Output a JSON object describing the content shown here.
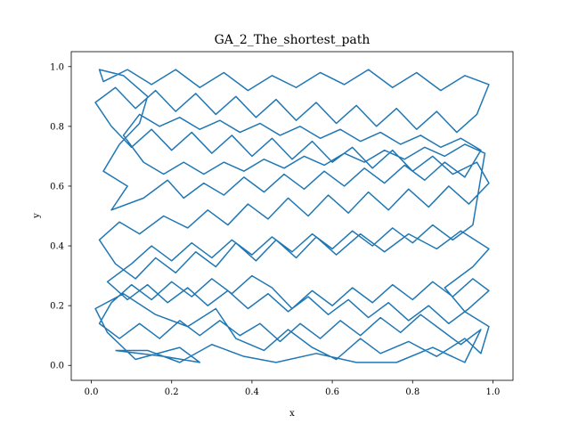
{
  "chart_data": {
    "type": "line",
    "title": "GA_2_The_shortest_path",
    "xlabel": "x",
    "ylabel": "y",
    "xlim": [
      -0.05,
      1.05
    ],
    "ylim": [
      -0.05,
      1.05
    ],
    "xticks": [
      0.0,
      0.2,
      0.4,
      0.6,
      0.8,
      1.0
    ],
    "yticks": [
      0.0,
      0.2,
      0.4,
      0.6,
      0.8,
      1.0
    ],
    "xtick_labels": [
      "0.0",
      "0.2",
      "0.4",
      "0.6",
      "0.8",
      "1.0"
    ],
    "ytick_labels": [
      "0.0",
      "0.2",
      "0.4",
      "0.6",
      "0.8",
      "1.0"
    ],
    "grid": false,
    "legend": "none",
    "series": [
      {
        "color": "#1f77b4",
        "points": [
          [
            0.06,
            0.05
          ],
          [
            0.18,
            0.03
          ],
          [
            0.27,
            0.01
          ],
          [
            0.22,
            0.06
          ],
          [
            0.11,
            0.02
          ],
          [
            0.04,
            0.11
          ],
          [
            0.01,
            0.19
          ],
          [
            0.08,
            0.24
          ],
          [
            0.16,
            0.17
          ],
          [
            0.24,
            0.13
          ],
          [
            0.31,
            0.19
          ],
          [
            0.36,
            0.09
          ],
          [
            0.43,
            0.05
          ],
          [
            0.49,
            0.12
          ],
          [
            0.55,
            0.06
          ],
          [
            0.61,
            0.02
          ],
          [
            0.67,
            0.09
          ],
          [
            0.72,
            0.04
          ],
          [
            0.79,
            0.08
          ],
          [
            0.86,
            0.03
          ],
          [
            0.93,
            0.09
          ],
          [
            0.97,
            0.04
          ],
          [
            0.99,
            0.13
          ],
          [
            0.93,
            0.18
          ],
          [
            0.88,
            0.26
          ],
          [
            0.95,
            0.33
          ],
          [
            0.99,
            0.39
          ],
          [
            0.92,
            0.45
          ],
          [
            0.86,
            0.39
          ],
          [
            0.79,
            0.44
          ],
          [
            0.73,
            0.38
          ],
          [
            0.67,
            0.44
          ],
          [
            0.61,
            0.37
          ],
          [
            0.56,
            0.43
          ],
          [
            0.51,
            0.36
          ],
          [
            0.46,
            0.42
          ],
          [
            0.41,
            0.35
          ],
          [
            0.36,
            0.41
          ],
          [
            0.31,
            0.33
          ],
          [
            0.26,
            0.38
          ],
          [
            0.21,
            0.31
          ],
          [
            0.16,
            0.36
          ],
          [
            0.11,
            0.29
          ],
          [
            0.06,
            0.34
          ],
          [
            0.02,
            0.42
          ],
          [
            0.07,
            0.48
          ],
          [
            0.12,
            0.44
          ],
          [
            0.18,
            0.5
          ],
          [
            0.24,
            0.46
          ],
          [
            0.29,
            0.52
          ],
          [
            0.34,
            0.47
          ],
          [
            0.39,
            0.54
          ],
          [
            0.44,
            0.49
          ],
          [
            0.49,
            0.56
          ],
          [
            0.54,
            0.5
          ],
          [
            0.59,
            0.57
          ],
          [
            0.64,
            0.51
          ],
          [
            0.69,
            0.58
          ],
          [
            0.74,
            0.52
          ],
          [
            0.79,
            0.59
          ],
          [
            0.84,
            0.53
          ],
          [
            0.89,
            0.6
          ],
          [
            0.94,
            0.54
          ],
          [
            0.99,
            0.61
          ],
          [
            0.96,
            0.68
          ],
          [
            0.9,
            0.64
          ],
          [
            0.85,
            0.7
          ],
          [
            0.8,
            0.65
          ],
          [
            0.75,
            0.72
          ],
          [
            0.7,
            0.66
          ],
          [
            0.65,
            0.73
          ],
          [
            0.6,
            0.68
          ],
          [
            0.55,
            0.75
          ],
          [
            0.5,
            0.69
          ],
          [
            0.45,
            0.76
          ],
          [
            0.4,
            0.7
          ],
          [
            0.35,
            0.77
          ],
          [
            0.3,
            0.71
          ],
          [
            0.25,
            0.78
          ],
          [
            0.2,
            0.72
          ],
          [
            0.15,
            0.79
          ],
          [
            0.1,
            0.73
          ],
          [
            0.05,
            0.8
          ],
          [
            0.01,
            0.88
          ],
          [
            0.06,
            0.93
          ],
          [
            0.11,
            0.86
          ],
          [
            0.16,
            0.92
          ],
          [
            0.21,
            0.85
          ],
          [
            0.26,
            0.91
          ],
          [
            0.31,
            0.84
          ],
          [
            0.36,
            0.9
          ],
          [
            0.41,
            0.83
          ],
          [
            0.46,
            0.89
          ],
          [
            0.51,
            0.82
          ],
          [
            0.56,
            0.88
          ],
          [
            0.61,
            0.81
          ],
          [
            0.66,
            0.87
          ],
          [
            0.71,
            0.8
          ],
          [
            0.76,
            0.86
          ],
          [
            0.81,
            0.79
          ],
          [
            0.86,
            0.85
          ],
          [
            0.91,
            0.78
          ],
          [
            0.96,
            0.84
          ],
          [
            0.99,
            0.94
          ],
          [
            0.93,
            0.97
          ],
          [
            0.87,
            0.92
          ],
          [
            0.81,
            0.98
          ],
          [
            0.75,
            0.93
          ],
          [
            0.69,
            0.99
          ],
          [
            0.63,
            0.94
          ],
          [
            0.57,
            0.98
          ],
          [
            0.51,
            0.93
          ],
          [
            0.45,
            0.97
          ],
          [
            0.39,
            0.92
          ],
          [
            0.33,
            0.98
          ],
          [
            0.27,
            0.93
          ],
          [
            0.21,
            0.99
          ],
          [
            0.15,
            0.94
          ],
          [
            0.09,
            0.99
          ],
          [
            0.03,
            0.95
          ],
          [
            0.02,
            0.99
          ],
          [
            0.08,
            0.97
          ],
          [
            0.14,
            0.9
          ],
          [
            0.12,
            0.81
          ],
          [
            0.07,
            0.74
          ],
          [
            0.03,
            0.65
          ],
          [
            0.09,
            0.6
          ],
          [
            0.05,
            0.52
          ],
          [
            0.13,
            0.56
          ],
          [
            0.19,
            0.62
          ],
          [
            0.23,
            0.56
          ],
          [
            0.28,
            0.61
          ],
          [
            0.33,
            0.57
          ],
          [
            0.38,
            0.63
          ],
          [
            0.43,
            0.58
          ],
          [
            0.48,
            0.64
          ],
          [
            0.53,
            0.59
          ],
          [
            0.58,
            0.65
          ],
          [
            0.63,
            0.6
          ],
          [
            0.68,
            0.66
          ],
          [
            0.73,
            0.61
          ],
          [
            0.78,
            0.67
          ],
          [
            0.83,
            0.62
          ],
          [
            0.88,
            0.68
          ],
          [
            0.93,
            0.63
          ],
          [
            0.97,
            0.72
          ],
          [
            0.92,
            0.76
          ],
          [
            0.87,
            0.73
          ],
          [
            0.82,
            0.77
          ],
          [
            0.77,
            0.74
          ],
          [
            0.72,
            0.78
          ],
          [
            0.67,
            0.75
          ],
          [
            0.62,
            0.79
          ],
          [
            0.57,
            0.76
          ],
          [
            0.52,
            0.8
          ],
          [
            0.47,
            0.77
          ],
          [
            0.42,
            0.81
          ],
          [
            0.37,
            0.78
          ],
          [
            0.32,
            0.82
          ],
          [
            0.27,
            0.79
          ],
          [
            0.22,
            0.83
          ],
          [
            0.17,
            0.8
          ],
          [
            0.12,
            0.84
          ],
          [
            0.08,
            0.77
          ],
          [
            0.13,
            0.68
          ],
          [
            0.18,
            0.64
          ],
          [
            0.23,
            0.68
          ],
          [
            0.28,
            0.64
          ],
          [
            0.33,
            0.68
          ],
          [
            0.38,
            0.65
          ],
          [
            0.43,
            0.69
          ],
          [
            0.48,
            0.66
          ],
          [
            0.53,
            0.7
          ],
          [
            0.58,
            0.67
          ],
          [
            0.63,
            0.71
          ],
          [
            0.68,
            0.68
          ],
          [
            0.73,
            0.72
          ],
          [
            0.78,
            0.69
          ],
          [
            0.83,
            0.73
          ],
          [
            0.88,
            0.7
          ],
          [
            0.93,
            0.74
          ],
          [
            0.98,
            0.71
          ],
          [
            0.95,
            0.47
          ],
          [
            0.9,
            0.42
          ],
          [
            0.85,
            0.47
          ],
          [
            0.8,
            0.41
          ],
          [
            0.75,
            0.46
          ],
          [
            0.7,
            0.4
          ],
          [
            0.65,
            0.45
          ],
          [
            0.6,
            0.39
          ],
          [
            0.55,
            0.44
          ],
          [
            0.5,
            0.38
          ],
          [
            0.45,
            0.43
          ],
          [
            0.4,
            0.37
          ],
          [
            0.35,
            0.42
          ],
          [
            0.3,
            0.36
          ],
          [
            0.25,
            0.41
          ],
          [
            0.2,
            0.35
          ],
          [
            0.15,
            0.4
          ],
          [
            0.1,
            0.34
          ],
          [
            0.04,
            0.28
          ],
          [
            0.09,
            0.22
          ],
          [
            0.14,
            0.27
          ],
          [
            0.19,
            0.21
          ],
          [
            0.24,
            0.26
          ],
          [
            0.29,
            0.2
          ],
          [
            0.34,
            0.25
          ],
          [
            0.39,
            0.19
          ],
          [
            0.44,
            0.24
          ],
          [
            0.49,
            0.18
          ],
          [
            0.54,
            0.23
          ],
          [
            0.59,
            0.17
          ],
          [
            0.64,
            0.22
          ],
          [
            0.69,
            0.16
          ],
          [
            0.74,
            0.21
          ],
          [
            0.79,
            0.15
          ],
          [
            0.84,
            0.2
          ],
          [
            0.89,
            0.14
          ],
          [
            0.94,
            0.19
          ],
          [
            0.99,
            0.25
          ],
          [
            0.95,
            0.29
          ],
          [
            0.9,
            0.23
          ],
          [
            0.85,
            0.28
          ],
          [
            0.8,
            0.22
          ],
          [
            0.75,
            0.27
          ],
          [
            0.7,
            0.21
          ],
          [
            0.65,
            0.26
          ],
          [
            0.6,
            0.2
          ],
          [
            0.55,
            0.25
          ],
          [
            0.5,
            0.19
          ],
          [
            0.45,
            0.26
          ],
          [
            0.4,
            0.3
          ],
          [
            0.35,
            0.24
          ],
          [
            0.3,
            0.29
          ],
          [
            0.25,
            0.23
          ],
          [
            0.2,
            0.28
          ],
          [
            0.15,
            0.22
          ],
          [
            0.1,
            0.27
          ],
          [
            0.05,
            0.21
          ],
          [
            0.02,
            0.14
          ],
          [
            0.07,
            0.09
          ],
          [
            0.12,
            0.14
          ],
          [
            0.17,
            0.09
          ],
          [
            0.22,
            0.15
          ],
          [
            0.27,
            0.1
          ],
          [
            0.32,
            0.15
          ],
          [
            0.37,
            0.1
          ],
          [
            0.42,
            0.14
          ],
          [
            0.47,
            0.08
          ],
          [
            0.52,
            0.14
          ],
          [
            0.57,
            0.09
          ],
          [
            0.62,
            0.15
          ],
          [
            0.67,
            0.1
          ],
          [
            0.72,
            0.16
          ],
          [
            0.77,
            0.11
          ],
          [
            0.82,
            0.17
          ],
          [
            0.87,
            0.12
          ],
          [
            0.92,
            0.07
          ],
          [
            0.97,
            0.12
          ],
          [
            0.93,
            0.01
          ],
          [
            0.85,
            0.06
          ],
          [
            0.76,
            0.01
          ],
          [
            0.66,
            0.01
          ],
          [
            0.56,
            0.04
          ],
          [
            0.46,
            0.01
          ],
          [
            0.38,
            0.03
          ],
          [
            0.3,
            0.07
          ],
          [
            0.22,
            0.01
          ],
          [
            0.14,
            0.05
          ],
          [
            0.06,
            0.05
          ]
        ]
      }
    ]
  }
}
